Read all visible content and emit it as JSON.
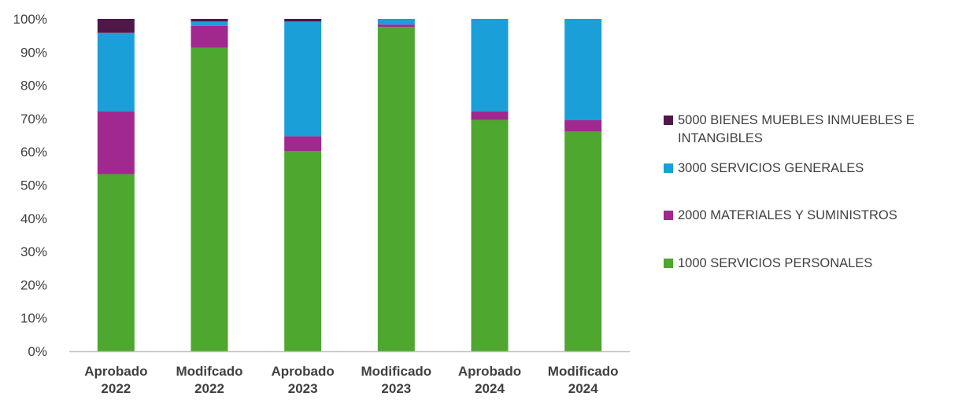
{
  "chart_data": {
    "type": "bar",
    "stacked": true,
    "percent_stacked": true,
    "title": "",
    "xlabel": "",
    "ylabel": "",
    "ylim": [
      0,
      100
    ],
    "yticks": [
      "0%",
      "10%",
      "20%",
      "30%",
      "40%",
      "50%",
      "60%",
      "70%",
      "80%",
      "90%",
      "100%"
    ],
    "grid": false,
    "legend_position": "right",
    "categories": [
      [
        "Aprobado",
        "2022"
      ],
      [
        "Modifcado",
        "2022"
      ],
      [
        "Aprobado",
        "2023"
      ],
      [
        "Modificado",
        "2023"
      ],
      [
        "Aprobado",
        "2024"
      ],
      [
        "Modificado",
        "2024"
      ]
    ],
    "series": [
      {
        "name": "1000 SERVICIOS PERSONALES",
        "color": "#4ea72e",
        "values": [
          53.3,
          91.3,
          60.2,
          97.6,
          69.6,
          66.1
        ]
      },
      {
        "name": "2000 MATERIALES Y SUMINISTROS",
        "color": "#a0288f",
        "values": [
          18.9,
          6.6,
          4.5,
          0.7,
          2.6,
          3.4
        ]
      },
      {
        "name": "3000 SERVICIOS GENERALES",
        "color": "#1a9fd9",
        "values": [
          23.6,
          1.3,
          34.5,
          1.7,
          27.8,
          30.5
        ]
      },
      {
        "name": "5000 BIENES MUEBLES INMUEBLES E INTANGIBLES",
        "color": "#4f1848",
        "values": [
          4.2,
          0.8,
          0.8,
          0.0,
          0.0,
          0.0
        ]
      }
    ],
    "legend": [
      {
        "lines": [
          "5000 BIENES MUEBLES INMUEBLES E",
          "INTANGIBLES"
        ],
        "color": "#4f1848"
      },
      {
        "lines": [
          "3000 SERVICIOS GENERALES"
        ],
        "color": "#1a9fd9"
      },
      {
        "lines": [
          "2000 MATERIALES Y SUMINISTROS"
        ],
        "color": "#a0288f"
      },
      {
        "lines": [
          "1000 SERVICIOS PERSONALES"
        ],
        "color": "#4ea72e"
      }
    ]
  }
}
